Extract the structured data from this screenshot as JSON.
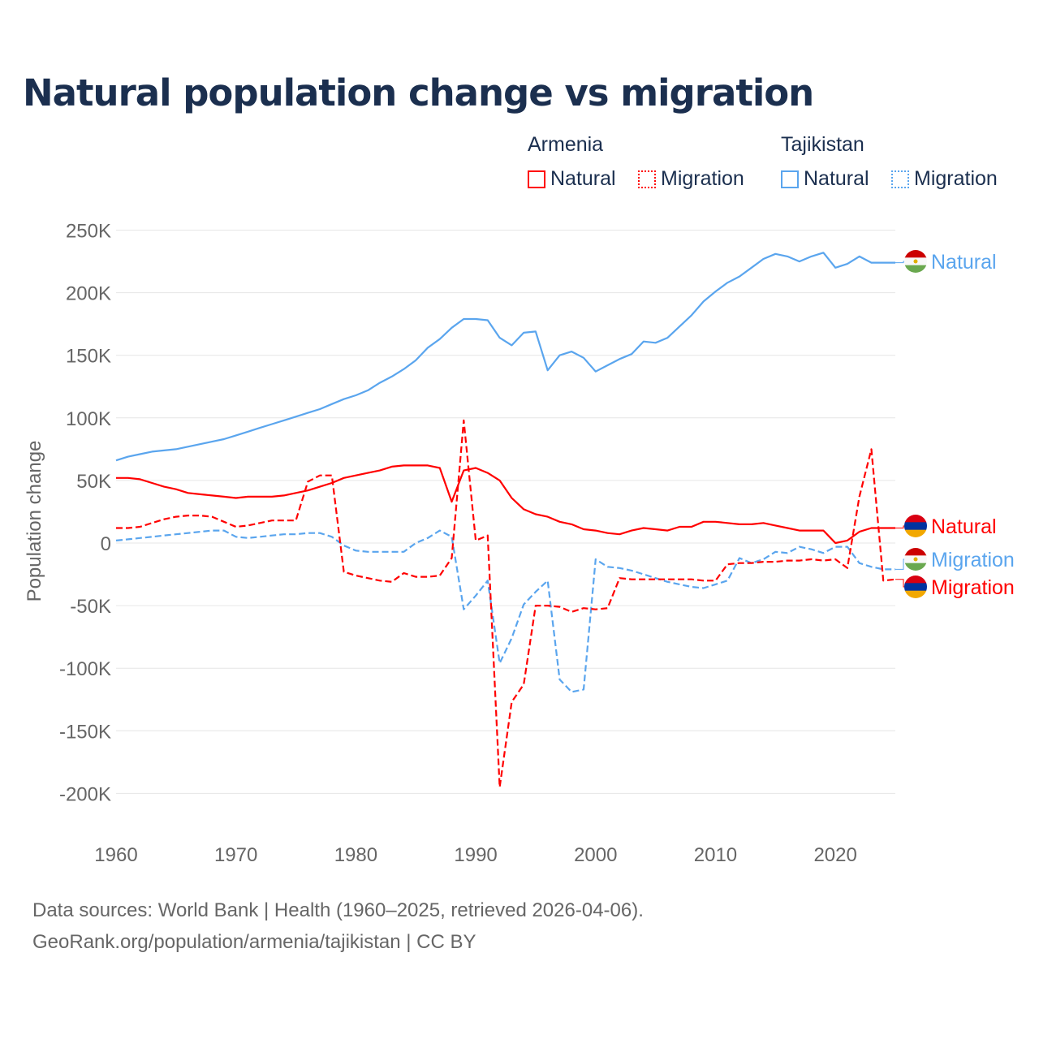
{
  "title": "Natural population change vs migration",
  "legend": {
    "groups": [
      {
        "name": "Armenia",
        "items": [
          "Natural",
          "Migration"
        ],
        "color": "#ff0000"
      },
      {
        "name": "Tajikistan",
        "items": [
          "Natural",
          "Migration"
        ],
        "color": "#5aa5ee"
      }
    ]
  },
  "footer": {
    "line1": "Data sources: World Bank | Health (1960–2025, retrieved 2026-04-06).",
    "line2": "GeoRank.org/population/armenia/tajikistan | CC BY"
  },
  "chart_data": {
    "type": "line",
    "title": "Natural population change vs migration",
    "xlabel": "",
    "ylabel": "Population change",
    "xlim": [
      1960,
      2025
    ],
    "ylim": [
      -200000,
      250000
    ],
    "x_ticks": [
      "1960",
      "1970",
      "1980",
      "1990",
      "2000",
      "2010",
      "2020"
    ],
    "y_ticks": [
      "250K",
      "200K",
      "150K",
      "100K",
      "50K",
      "0",
      "-50K",
      "-100K",
      "-150K",
      "-200K"
    ],
    "y_tick_values": [
      250,
      200,
      150,
      100,
      50,
      0,
      -50,
      -100,
      -150,
      -200
    ],
    "units": "thousands",
    "x_start": 1960,
    "series": [
      {
        "name": "Tajikistan Natural",
        "end_label": "Natural",
        "country": "Tajikistan",
        "color": "#5aa5ee",
        "dashed": false,
        "values": [
          66,
          69,
          71,
          73,
          74,
          75,
          77,
          79,
          81,
          83,
          86,
          89,
          92,
          95,
          98,
          101,
          104,
          107,
          111,
          115,
          118,
          122,
          128,
          133,
          139,
          146,
          156,
          163,
          172,
          179,
          179,
          178,
          164,
          158,
          168,
          169,
          138,
          150,
          153,
          148,
          137,
          142,
          147,
          151,
          161,
          160,
          164,
          173,
          182,
          193,
          201,
          208,
          213,
          220,
          227,
          231,
          229,
          225,
          229,
          232,
          220,
          223,
          229,
          224,
          224,
          224
        ]
      },
      {
        "name": "Armenia Natural",
        "end_label": "Natural",
        "country": "Armenia",
        "color": "#ff0000",
        "dashed": false,
        "values": [
          52,
          52,
          51,
          48,
          45,
          43,
          40,
          39,
          38,
          37,
          36,
          37,
          37,
          37,
          38,
          40,
          42,
          45,
          48,
          52,
          54,
          56,
          58,
          61,
          62,
          62,
          62,
          60,
          33,
          58,
          60,
          56,
          50,
          36,
          27,
          23,
          21,
          17,
          15,
          11,
          10,
          8,
          7,
          10,
          12,
          11,
          10,
          13,
          13,
          17,
          17,
          16,
          15,
          15,
          16,
          14,
          12,
          10,
          10,
          10,
          0,
          2,
          9,
          12,
          12,
          12
        ]
      },
      {
        "name": "Tajikistan Migration",
        "end_label": "Migration",
        "country": "Tajikistan",
        "color": "#5aa5ee",
        "dashed": true,
        "values": [
          2,
          3,
          4,
          5,
          6,
          7,
          8,
          9,
          10,
          10,
          5,
          4,
          5,
          6,
          7,
          7,
          8,
          8,
          5,
          -2,
          -6,
          -7,
          -7,
          -7,
          -7,
          0,
          4,
          10,
          5,
          -53,
          -42,
          -30,
          -96,
          -76,
          -49,
          -39,
          -30,
          -109,
          -119,
          -117,
          -13,
          -19,
          -20,
          -22,
          -25,
          -28,
          -31,
          -33,
          -35,
          -36,
          -33,
          -30,
          -12,
          -16,
          -13,
          -7,
          -8,
          -3,
          -5,
          -8,
          -3,
          -3,
          -16,
          -19,
          -21,
          -21
        ]
      },
      {
        "name": "Armenia Migration",
        "end_label": "Migration",
        "country": "Armenia",
        "color": "#ff0000",
        "dashed": true,
        "values": [
          12,
          12,
          13,
          16,
          19,
          21,
          22,
          22,
          21,
          17,
          13,
          14,
          16,
          18,
          18,
          18,
          49,
          54,
          54,
          -23,
          -26,
          -28,
          -30,
          -31,
          -24,
          -27,
          -27,
          -26,
          -12,
          98,
          2,
          6,
          -195,
          -127,
          -113,
          -50,
          -50,
          -51,
          -55,
          -52,
          -53,
          -52,
          -28,
          -29,
          -29,
          -29,
          -29,
          -29,
          -29,
          -30,
          -30,
          -17,
          -16,
          -16,
          -15,
          -15,
          -14,
          -14,
          -13,
          -14,
          -13,
          -20,
          37,
          75,
          -30,
          -29
        ]
      }
    ]
  }
}
